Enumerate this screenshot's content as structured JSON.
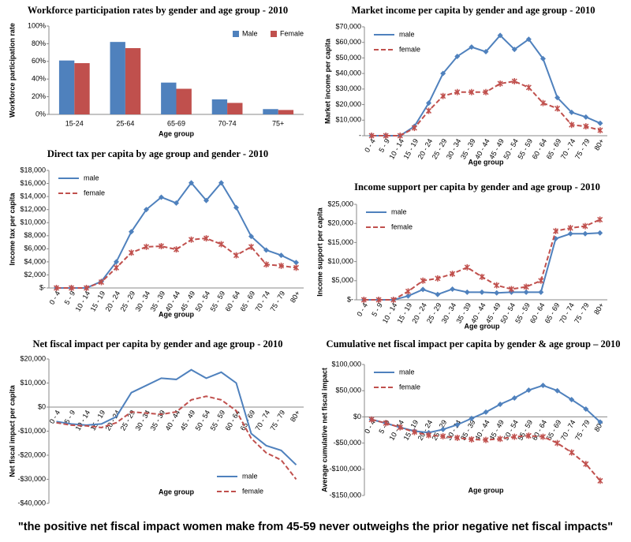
{
  "caption": "\"the positive net fiscal impact women make from 45-59 never outweighs the prior negative net fiscal impacts\"",
  "chart_data": [
    {
      "type": "bar",
      "title": "Workforce participation rates by gender and age group - 2010",
      "x_label": "Age group",
      "y_label": "Workforce participation rate",
      "categories": [
        "15-24",
        "25-64",
        "65-69",
        "70-74",
        "75+"
      ],
      "series": [
        {
          "name": "Male",
          "color": "#4f81bd",
          "values": [
            61,
            82,
            36,
            17,
            6
          ]
        },
        {
          "name": "Female",
          "color": "#c0504d",
          "values": [
            58,
            75,
            29,
            13,
            5
          ]
        }
      ],
      "ylim": [
        0,
        100
      ],
      "yticks": [
        {
          "value": 0,
          "label": "0%"
        },
        {
          "value": 20,
          "label": "20%"
        },
        {
          "value": 40,
          "label": "40%"
        },
        {
          "value": 60,
          "label": "60%"
        },
        {
          "value": 80,
          "label": "80%"
        },
        {
          "value": 100,
          "label": "100%"
        }
      ],
      "legend": "upper right"
    },
    {
      "type": "line",
      "title": "Market income per capita by gender and age group - 2010",
      "x_label": "Age group",
      "y_label": "Market income per capita",
      "categories": [
        "0 - 4",
        "5 - 9",
        "10 - 14",
        "15 - 19",
        "20 - 24",
        "25 - 29",
        "30 - 34",
        "35 - 39",
        "40 - 44",
        "45 - 49",
        "50 - 54",
        "55 - 59",
        "60 - 64",
        "65 - 69",
        "70 - 74",
        "75 - 79",
        "80+"
      ],
      "series": [
        {
          "name": "male",
          "color": "#4f81bd",
          "marker": "diamond",
          "dash": false,
          "values": [
            0,
            0,
            0,
            6000,
            21000,
            40000,
            51000,
            57000,
            54000,
            64500,
            55500,
            62000,
            49500,
            24500,
            15000,
            12000,
            8000
          ]
        },
        {
          "name": "female",
          "color": "#c0504d",
          "marker": "x",
          "dash": true,
          "values": [
            0,
            0,
            0,
            5000,
            16000,
            25500,
            28000,
            28000,
            28000,
            33500,
            35000,
            31000,
            21000,
            17500,
            7000,
            6000,
            3500
          ]
        }
      ],
      "ylim": [
        0,
        70000
      ],
      "yticks": [
        {
          "value": 0,
          "label": "-"
        },
        {
          "value": 10000,
          "label": "$10,000"
        },
        {
          "value": 20000,
          "label": "$20,000"
        },
        {
          "value": 30000,
          "label": "$30,000"
        },
        {
          "value": 40000,
          "label": "$40,000"
        },
        {
          "value": 50000,
          "label": "$50,000"
        },
        {
          "value": 60000,
          "label": "$60,000"
        },
        {
          "value": 70000,
          "label": "$70,000"
        }
      ],
      "legend": "upper left"
    },
    {
      "type": "line",
      "title": "Direct tax per capita by age group and gender - 2010",
      "x_label": "Age group",
      "y_label": "Income tax per capita",
      "categories": [
        "0 - 4",
        "5 - 9",
        "10 - 14",
        "15 - 19",
        "20 - 24",
        "25 - 29",
        "30 - 34",
        "35 - 39",
        "40 - 44",
        "45 - 49",
        "50 - 54",
        "55 - 59",
        "60 - 64",
        "65 - 69",
        "70 - 74",
        "75 - 79",
        "80+"
      ],
      "series": [
        {
          "name": "male",
          "color": "#4f81bd",
          "marker": "diamond",
          "dash": false,
          "values": [
            0,
            0,
            0,
            1000,
            4000,
            8600,
            12000,
            13900,
            13000,
            16100,
            13400,
            16100,
            12300,
            7900,
            5800,
            5000,
            3900
          ]
        },
        {
          "name": "female",
          "color": "#c0504d",
          "marker": "x",
          "dash": true,
          "values": [
            0,
            0,
            0,
            900,
            3100,
            5400,
            6300,
            6400,
            5900,
            7400,
            7600,
            6700,
            5000,
            6300,
            3600,
            3400,
            3100
          ]
        }
      ],
      "ylim": [
        0,
        18000
      ],
      "yticks": [
        {
          "value": 0,
          "label": "$-"
        },
        {
          "value": 2000,
          "label": "$2,000"
        },
        {
          "value": 4000,
          "label": "$4,000"
        },
        {
          "value": 6000,
          "label": "$6,000"
        },
        {
          "value": 8000,
          "label": "$8,000"
        },
        {
          "value": 10000,
          "label": "$10,000"
        },
        {
          "value": 12000,
          "label": "$12,000"
        },
        {
          "value": 14000,
          "label": "$14,000"
        },
        {
          "value": 16000,
          "label": "$16,000"
        },
        {
          "value": 18000,
          "label": "$18,000"
        }
      ],
      "legend": "upper left"
    },
    {
      "type": "line",
      "title": "Income support per capita by gender and age group - 2010",
      "x_label": "Age group",
      "y_label": "Income support per capita",
      "categories": [
        "0 - 4",
        "5 - 9",
        "10 - 14",
        "15 - 19",
        "20 - 24",
        "25 - 29",
        "30 - 34",
        "35 - 39",
        "40 - 44",
        "45 - 49",
        "50 - 54",
        "55 - 59",
        "60 - 64",
        "65 - 69",
        "70 - 74",
        "75 - 79",
        "80+"
      ],
      "series": [
        {
          "name": "male",
          "color": "#4f81bd",
          "marker": "diamond",
          "dash": false,
          "values": [
            0,
            0,
            0,
            1000,
            2700,
            1400,
            2800,
            2000,
            2000,
            1800,
            2000,
            2000,
            2000,
            16000,
            17300,
            17300,
            17500
          ]
        },
        {
          "name": "female",
          "color": "#c0504d",
          "marker": "x",
          "dash": true,
          "values": [
            0,
            0,
            0,
            2200,
            5000,
            5600,
            6800,
            8500,
            6000,
            3800,
            2800,
            3400,
            5000,
            18000,
            18800,
            19300,
            21000
          ]
        }
      ],
      "ylim": [
        0,
        25000
      ],
      "yticks": [
        {
          "value": 0,
          "label": "$-"
        },
        {
          "value": 5000,
          "label": "$5,000"
        },
        {
          "value": 10000,
          "label": "$10,000"
        },
        {
          "value": 15000,
          "label": "$15,000"
        },
        {
          "value": 20000,
          "label": "$20,000"
        },
        {
          "value": 25000,
          "label": "$25,000"
        }
      ],
      "legend": "upper left"
    },
    {
      "type": "line",
      "title": "Net fiscal impact per capita by gender and age group - 2010",
      "x_label": "Age group",
      "y_label": "Net fiscal impact per capita",
      "categories": [
        "0 - 4",
        "5 - 9",
        "10 - 14",
        "15 - 19",
        "20 - 24",
        "25 - 29",
        "30 - 34",
        "35 - 39",
        "40 - 44",
        "45 - 49",
        "50 - 54",
        "55 - 59",
        "60 - 64",
        "65 - 69",
        "70 - 74",
        "75 - 79",
        "80+"
      ],
      "series": [
        {
          "name": "male",
          "color": "#4f81bd",
          "marker": "none",
          "dash": false,
          "values": [
            -6000,
            -7000,
            -7500,
            -7000,
            -4000,
            6000,
            9000,
            12000,
            11500,
            15500,
            12000,
            14500,
            10000,
            -11000,
            -16000,
            -18000,
            -24000
          ]
        },
        {
          "name": "female",
          "color": "#c0504d",
          "marker": "none",
          "dash": true,
          "values": [
            -6500,
            -7500,
            -7800,
            -8500,
            -6500,
            -2000,
            -2500,
            -3000,
            -2000,
            3000,
            4500,
            3000,
            -1500,
            -13000,
            -19000,
            -22000,
            -30000
          ]
        }
      ],
      "ylim": [
        -40000,
        20000
      ],
      "yticks": [
        {
          "value": -40000,
          "label": "-$40,000"
        },
        {
          "value": -30000,
          "label": "-$30,000"
        },
        {
          "value": -20000,
          "label": "-$20,000"
        },
        {
          "value": -10000,
          "label": "-$10,000"
        },
        {
          "value": 0,
          "label": "$0"
        },
        {
          "value": 10000,
          "label": "$10,000"
        },
        {
          "value": 20000,
          "label": "$20,000"
        }
      ],
      "legend": "lower right"
    },
    {
      "type": "line",
      "title": "Cumulative net fiscal impact per capita by gender & age group – 2010",
      "x_label": "Age group",
      "y_label": "Average cumulative net fiscal impact",
      "categories": [
        "0 - 4",
        "5 - 9",
        "10 - 14",
        "15 - 19",
        "20 - 24",
        "25 - 29",
        "30 - 34",
        "35 - 39",
        "40 - 44",
        "45 - 49",
        "50 - 54",
        "55 - 59",
        "60 - 64",
        "65 - 69",
        "70 - 74",
        "75 - 79",
        "80+"
      ],
      "series": [
        {
          "name": "male",
          "color": "#4f81bd",
          "marker": "diamond",
          "dash": false,
          "values": [
            -5000,
            -12000,
            -20000,
            -27000,
            -30000,
            -24000,
            -15000,
            -3000,
            9000,
            24000,
            36000,
            51000,
            60000,
            50000,
            33000,
            15000,
            -10000
          ]
        },
        {
          "name": "female",
          "color": "#c0504d",
          "marker": "x",
          "dash": true,
          "values": [
            -5000,
            -12000,
            -20000,
            -29000,
            -35000,
            -37000,
            -40000,
            -43000,
            -44000,
            -42000,
            -38000,
            -36000,
            -38000,
            -50000,
            -68000,
            -90000,
            -122000
          ]
        }
      ],
      "ylim": [
        -150000,
        100000
      ],
      "yticks": [
        {
          "value": -150000,
          "label": "-$150,000"
        },
        {
          "value": -100000,
          "label": "-$100,000"
        },
        {
          "value": -50000,
          "label": "-$50,000"
        },
        {
          "value": 0,
          "label": "$0"
        },
        {
          "value": 50000,
          "label": "$50,000"
        },
        {
          "value": 100000,
          "label": "$100,000"
        }
      ],
      "legend": "upper left"
    }
  ]
}
